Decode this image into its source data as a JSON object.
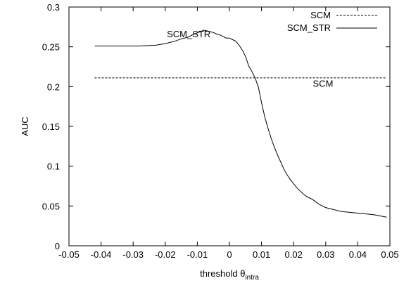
{
  "chart_data": {
    "type": "line",
    "title": "",
    "xlabel": "threshold θ",
    "xlabel_subscript": "intra",
    "ylabel": "AUC",
    "xlim": [
      -0.05,
      0.05
    ],
    "ylim": [
      0,
      0.3
    ],
    "xticks": [
      -0.05,
      -0.04,
      -0.03,
      -0.02,
      -0.01,
      0,
      0.01,
      0.02,
      0.03,
      0.04,
      0.05
    ],
    "xtick_labels": [
      "-0.05",
      "-0.04",
      "-0.03",
      "-0.02",
      "-0.01",
      "0",
      "0.01",
      "0.02",
      "0.03",
      "0.04",
      "0.05"
    ],
    "yticks": [
      0,
      0.05,
      0.1,
      0.15,
      0.2,
      0.25,
      0.3
    ],
    "ytick_labels": [
      "0",
      "0.05",
      "0.1",
      "0.15",
      "0.2",
      "0.25",
      "0.3"
    ],
    "grid": false,
    "legend_position": "top-right",
    "series": [
      {
        "name": "SCM",
        "style": "dashed",
        "x": [
          -0.042,
          0.049
        ],
        "y": [
          0.211,
          0.211
        ]
      },
      {
        "name": "SCM_STR",
        "style": "solid",
        "x": [
          -0.042,
          -0.035,
          -0.028,
          -0.023,
          -0.02,
          -0.017,
          -0.015,
          -0.013,
          -0.011,
          -0.009,
          -0.008,
          -0.007,
          -0.006,
          -0.005,
          -0.004,
          -0.003,
          -0.002,
          -0.001,
          0.0,
          0.001,
          0.002,
          0.003,
          0.004,
          0.005,
          0.006,
          0.007,
          0.008,
          0.0085,
          0.009,
          0.0095,
          0.01,
          0.011,
          0.012,
          0.013,
          0.014,
          0.015,
          0.016,
          0.017,
          0.018,
          0.019,
          0.02,
          0.021,
          0.022,
          0.023,
          0.024,
          0.025,
          0.026,
          0.027,
          0.028,
          0.03,
          0.032,
          0.035,
          0.04,
          0.045,
          0.049
        ],
        "y": [
          0.251,
          0.251,
          0.251,
          0.252,
          0.254,
          0.257,
          0.26,
          0.262,
          0.266,
          0.269,
          0.271,
          0.27,
          0.269,
          0.268,
          0.266,
          0.265,
          0.263,
          0.261,
          0.261,
          0.259,
          0.257,
          0.252,
          0.246,
          0.238,
          0.226,
          0.219,
          0.211,
          0.205,
          0.2,
          0.19,
          0.18,
          0.162,
          0.148,
          0.135,
          0.124,
          0.114,
          0.105,
          0.096,
          0.089,
          0.083,
          0.078,
          0.073,
          0.069,
          0.065,
          0.062,
          0.06,
          0.058,
          0.055,
          0.052,
          0.048,
          0.046,
          0.043,
          0.041,
          0.039,
          0.036
        ]
      }
    ],
    "annotations": [
      {
        "text": "SCM_STR",
        "x": -0.0195,
        "y": 0.262
      },
      {
        "text": "SCM",
        "x": 0.026,
        "y": 0.2
      }
    ]
  }
}
